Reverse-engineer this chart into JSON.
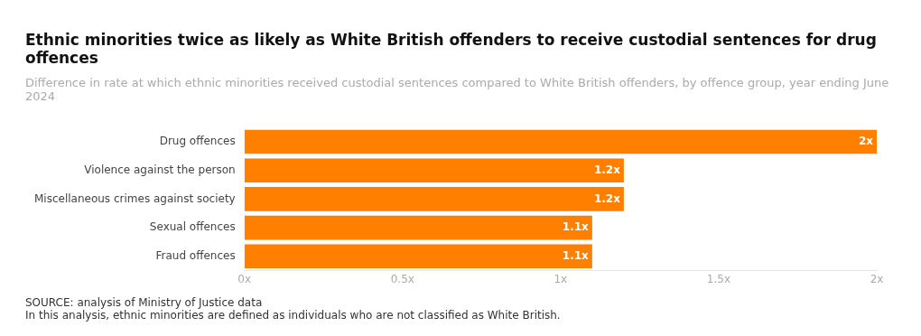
{
  "chart_data": {
    "type": "bar",
    "orientation": "horizontal",
    "title": "Ethnic minorities twice as likely as White British offenders to receive custodial sentences for drug offences",
    "subtitle": "Difference in rate at which ethnic minorities received custodial sentences compared to White British offenders, by offence group, year ending June 2024",
    "categories": [
      "Drug offences",
      "Violence against the person",
      "Miscellaneous crimes against society",
      "Sexual offences",
      "Fraud offences"
    ],
    "values": [
      2,
      1.2,
      1.2,
      1.1,
      1.1
    ],
    "value_labels": [
      "2x",
      "1.2x",
      "1.2x",
      "1.1x",
      "1.1x"
    ],
    "color": "#ff7f00",
    "xlim": [
      0,
      2
    ],
    "xticks": [
      {
        "value": 0,
        "label": "0x"
      },
      {
        "value": 0.5,
        "label": "0.5x"
      },
      {
        "value": 1,
        "label": "1x"
      },
      {
        "value": 1.5,
        "label": "1.5x"
      },
      {
        "value": 2,
        "label": "2x"
      }
    ],
    "grid": false,
    "legend": false,
    "annotations": [
      "SOURCE: analysis of Ministry of Justice data",
      "In this analysis, ethnic minorities are defined as individuals who are not classified as White British."
    ]
  }
}
